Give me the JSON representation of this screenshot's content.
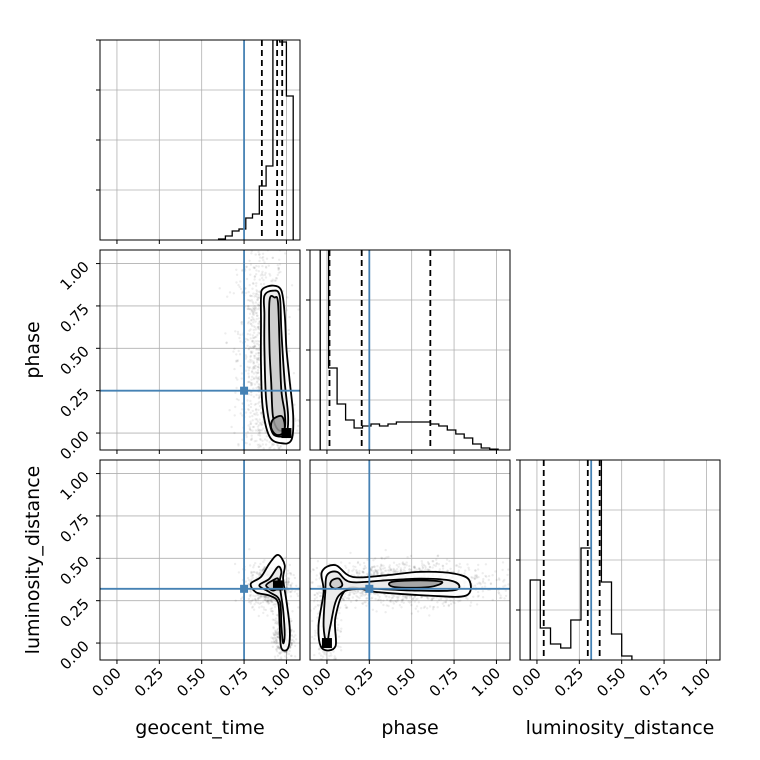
{
  "chart_data": {
    "type": "corner",
    "parameters": [
      "geocent_time",
      "phase",
      "luminosity_distance"
    ],
    "axis_labels": {
      "geocent_time": "geocent_time",
      "phase": "phase",
      "luminosity_distance": "luminosity_distance"
    },
    "ranges": {
      "geocent_time": [
        -0.1,
        1.08
      ],
      "phase": [
        -0.1,
        1.08
      ],
      "luminosity_distance": [
        -0.1,
        1.08
      ]
    },
    "ticks": {
      "geocent_time": [
        "0.00",
        "0.25",
        "0.50",
        "0.75",
        "1.00"
      ],
      "phase": [
        "0.00",
        "0.25",
        "0.50",
        "0.75",
        "1.00"
      ],
      "luminosity_distance": [
        "0.00",
        "0.25",
        "0.50",
        "0.75",
        "1.00"
      ]
    },
    "tick_values": [
      0,
      0.25,
      0.5,
      0.75,
      1.0
    ],
    "truths": {
      "geocent_time": 0.75,
      "phase": 0.25,
      "luminosity_distance": 0.32
    },
    "truth_color": "#4682b4",
    "histograms": {
      "geocent_time": {
        "edges": [
          0.6,
          0.64,
          0.68,
          0.72,
          0.76,
          0.8,
          0.84,
          0.88,
          0.92,
          0.96,
          1.0,
          1.04
        ],
        "counts": [
          0.5,
          2,
          4.5,
          5.5,
          11,
          13,
          27,
          37,
          100,
          99,
          72
        ],
        "quantiles": [
          0.855,
          0.945,
          0.975
        ]
      },
      "phase": {
        "edges": [
          -0.04,
          0.01,
          0.06,
          0.11,
          0.16,
          0.21,
          0.26,
          0.31,
          0.36,
          0.41,
          0.46,
          0.51,
          0.56,
          0.61,
          0.66,
          0.71,
          0.76,
          0.81,
          0.86,
          0.91,
          0.96,
          1.01
        ],
        "counts": [
          100,
          41,
          23,
          15,
          11,
          12,
          13,
          12,
          13,
          14,
          14,
          14,
          14,
          13,
          12,
          10,
          8,
          6,
          3,
          1,
          0.4
        ],
        "quantiles": [
          0.015,
          0.205,
          0.61
        ]
      },
      "luminosity_distance": {
        "edges": [
          -0.04,
          0.02,
          0.08,
          0.14,
          0.2,
          0.26,
          0.32,
          0.38,
          0.44,
          0.5,
          0.56
        ],
        "counts": [
          40,
          16,
          8,
          6,
          20,
          56,
          100,
          39,
          13,
          2
        ],
        "quantiles": [
          0.04,
          0.3,
          0.37
        ]
      }
    },
    "joint": [
      {
        "x": "geocent_time",
        "y": "phase",
        "scatter": [
          {
            "cx": 0.85,
            "cy": 0.45,
            "sx": 0.07,
            "sy": 0.35,
            "n": 1000
          },
          {
            "cx": 0.96,
            "cy": 0.1,
            "sx": 0.04,
            "sy": 0.08,
            "n": 400
          }
        ],
        "contours": [
          [
            [
              0.86,
              0.85
            ],
            [
              0.92,
              0.87
            ],
            [
              0.97,
              0.84
            ],
            [
              0.99,
              0.7
            ],
            [
              1.0,
              0.5
            ],
            [
              1.02,
              0.3
            ],
            [
              1.04,
              0.1
            ],
            [
              1.03,
              -0.04
            ],
            [
              0.97,
              -0.06
            ],
            [
              0.9,
              -0.02
            ],
            [
              0.86,
              0.15
            ],
            [
              0.85,
              0.4
            ],
            [
              0.85,
              0.65
            ],
            [
              0.85,
              0.8
            ]
          ],
          [
            [
              0.87,
              0.81
            ],
            [
              0.92,
              0.84
            ],
            [
              0.96,
              0.81
            ],
            [
              0.97,
              0.6
            ],
            [
              0.99,
              0.3
            ],
            [
              1.01,
              0.1
            ],
            [
              1.0,
              0.0
            ],
            [
              0.95,
              -0.02
            ],
            [
              0.91,
              0.02
            ],
            [
              0.88,
              0.2
            ],
            [
              0.87,
              0.5
            ],
            [
              0.87,
              0.7
            ]
          ],
          [
            [
              0.9,
              0.78
            ],
            [
              0.93,
              0.8
            ],
            [
              0.95,
              0.77
            ],
            [
              0.96,
              0.5
            ],
            [
              0.97,
              0.25
            ],
            [
              0.99,
              0.12
            ],
            [
              0.99,
              0.03
            ],
            [
              0.95,
              0.02
            ],
            [
              0.92,
              0.1
            ],
            [
              0.91,
              0.3
            ],
            [
              0.9,
              0.5
            ]
          ],
          [
            [
              0.92,
              0.08
            ],
            [
              0.97,
              0.1
            ],
            [
              0.99,
              0.05
            ],
            [
              0.98,
              0.0
            ],
            [
              0.94,
              -0.01
            ],
            [
              0.91,
              0.03
            ]
          ]
        ],
        "peak": [
          1.0,
          0.0
        ]
      },
      {
        "x": "geocent_time",
        "y": "luminosity_distance",
        "scatter": [
          {
            "cx": 0.9,
            "cy": 0.34,
            "sx": 0.06,
            "sy": 0.06,
            "n": 800
          },
          {
            "cx": 0.98,
            "cy": 0.04,
            "sx": 0.03,
            "sy": 0.07,
            "n": 350
          }
        ],
        "contours": [
          [
            [
              0.79,
              0.35
            ],
            [
              0.85,
              0.39
            ],
            [
              0.9,
              0.47
            ],
            [
              0.95,
              0.52
            ],
            [
              0.99,
              0.46
            ],
            [
              0.98,
              0.38
            ],
            [
              1.0,
              0.25
            ],
            [
              1.02,
              0.08
            ],
            [
              1.01,
              -0.03
            ],
            [
              0.97,
              -0.03
            ],
            [
              0.96,
              0.1
            ],
            [
              0.95,
              0.24
            ],
            [
              0.9,
              0.28
            ],
            [
              0.82,
              0.3
            ]
          ],
          [
            [
              0.84,
              0.34
            ],
            [
              0.9,
              0.38
            ],
            [
              0.95,
              0.45
            ],
            [
              0.97,
              0.42
            ],
            [
              0.96,
              0.35
            ],
            [
              0.98,
              0.2
            ],
            [
              0.99,
              0.05
            ],
            [
              0.98,
              0.0
            ],
            [
              0.97,
              0.1
            ],
            [
              0.96,
              0.25
            ],
            [
              0.9,
              0.3
            ]
          ],
          [
            [
              0.88,
              0.34
            ],
            [
              0.92,
              0.37
            ],
            [
              0.95,
              0.38
            ],
            [
              0.95,
              0.33
            ],
            [
              0.92,
              0.31
            ]
          ]
        ],
        "peak": [
          0.95,
          0.34
        ]
      },
      {
        "x": "phase",
        "y": "luminosity_distance",
        "scatter": [
          {
            "cx": 0.45,
            "cy": 0.35,
            "sx": 0.25,
            "sy": 0.06,
            "n": 1500
          },
          {
            "cx": 0.0,
            "cy": 0.1,
            "sx": 0.04,
            "sy": 0.12,
            "n": 350
          }
        ],
        "contours": [
          [
            [
              -0.03,
              0.42
            ],
            [
              0.05,
              0.46
            ],
            [
              0.15,
              0.39
            ],
            [
              0.35,
              0.4
            ],
            [
              0.55,
              0.42
            ],
            [
              0.75,
              0.41
            ],
            [
              0.84,
              0.37
            ],
            [
              0.82,
              0.28
            ],
            [
              0.6,
              0.28
            ],
            [
              0.3,
              0.3
            ],
            [
              0.12,
              0.32
            ],
            [
              0.05,
              0.15
            ],
            [
              0.05,
              -0.02
            ],
            [
              -0.03,
              -0.03
            ],
            [
              -0.05,
              0.1
            ],
            [
              -0.02,
              0.3
            ]
          ],
          [
            [
              0.0,
              0.4
            ],
            [
              0.06,
              0.42
            ],
            [
              0.14,
              0.36
            ],
            [
              0.35,
              0.37
            ],
            [
              0.55,
              0.38
            ],
            [
              0.72,
              0.37
            ],
            [
              0.78,
              0.34
            ],
            [
              0.74,
              0.31
            ],
            [
              0.5,
              0.31
            ],
            [
              0.2,
              0.32
            ],
            [
              0.07,
              0.28
            ],
            [
              0.02,
              0.1
            ],
            [
              0.0,
              0.0
            ],
            [
              -0.02,
              0.1
            ],
            [
              -0.01,
              0.3
            ]
          ],
          [
            [
              0.03,
              0.37
            ],
            [
              0.07,
              0.38
            ],
            [
              0.09,
              0.34
            ],
            [
              0.05,
              0.32
            ],
            [
              0.02,
              0.34
            ]
          ],
          [
            [
              0.38,
              0.36
            ],
            [
              0.55,
              0.37
            ],
            [
              0.68,
              0.36
            ],
            [
              0.6,
              0.33
            ],
            [
              0.4,
              0.33
            ]
          ]
        ],
        "peak": [
          0.0,
          0.0
        ]
      }
    ]
  }
}
